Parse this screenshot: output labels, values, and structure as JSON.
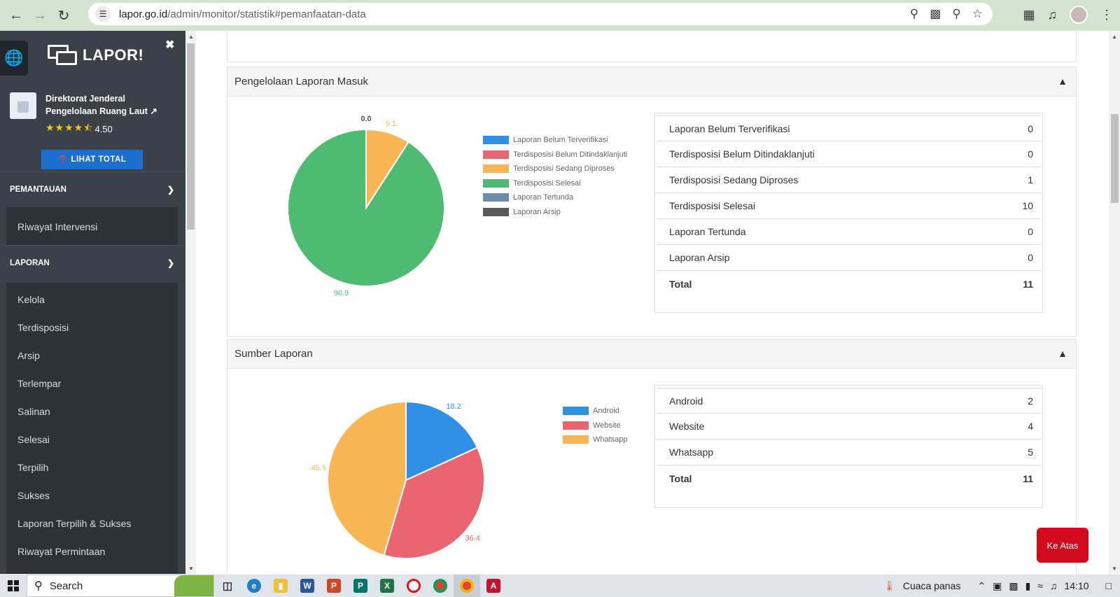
{
  "browser": {
    "url_host": "lapor.go.id",
    "url_path": "/admin/monitor/statistik#pemanfaatan-data"
  },
  "sidebar": {
    "logo_text": "LAPOR!",
    "org_name": "Direktorat Jenderal Pengelolaan Ruang Laut",
    "rating_value": "4.50",
    "lihat_total_label": "LIHAT TOTAL",
    "sections": [
      {
        "title": "PEMANTAUAN",
        "items": [
          "Riwayat Intervensi"
        ]
      },
      {
        "title": "LAPORAN",
        "items": [
          "Kelola",
          "Terdisposisi",
          "Arsip",
          "Terlempar",
          "Salinan",
          "Selesai",
          "Terpilih",
          "Sukses",
          "Laporan Terpilih & Sukses",
          "Riwayat Permintaan"
        ]
      }
    ]
  },
  "panels": [
    {
      "title": "Pengelolaan Laporan Masuk",
      "legend": [
        "Laporan Belum Terverifikasi",
        "Terdisposisi Belum Ditindaklanjuti",
        "Terdisposisi Sedang Diproses",
        "Terdisposisi Selesai",
        "Laporan Tertunda",
        "Laporan Arsip"
      ],
      "rows": [
        {
          "label": "Laporan Belum Terverifikasi",
          "value": "0"
        },
        {
          "label": "Terdisposisi Belum Ditindaklanjuti",
          "value": "0"
        },
        {
          "label": "Terdisposisi Sedang Diproses",
          "value": "1"
        },
        {
          "label": "Terdisposisi Selesai",
          "value": "10"
        },
        {
          "label": "Laporan Tertunda",
          "value": "0"
        },
        {
          "label": "Laporan Arsip",
          "value": "0"
        }
      ],
      "total_label": "Total",
      "total_value": "11"
    },
    {
      "title": "Sumber Laporan",
      "legend": [
        "Android",
        "Website",
        "Whatsapp"
      ],
      "rows": [
        {
          "label": "Android",
          "value": "2"
        },
        {
          "label": "Website",
          "value": "4"
        },
        {
          "label": "Whatsapp",
          "value": "5"
        }
      ],
      "total_label": "Total",
      "total_value": "11"
    }
  ],
  "chart_data": [
    {
      "type": "pie",
      "categories": [
        "Laporan Belum Terverifikasi",
        "Terdisposisi Belum Ditindaklanjuti",
        "Terdisposisi Sedang Diproses",
        "Terdisposisi Selesai",
        "Laporan Tertunda",
        "Laporan Arsip"
      ],
      "values": [
        0.0,
        0.0,
        9.1,
        90.9,
        0.0,
        0.0
      ],
      "data_labels": [
        "",
        "",
        "9.1",
        "90.9",
        "",
        ""
      ],
      "zero_label": "0.0",
      "colors": [
        "#2f91e6",
        "#e9656f",
        "#f8b554",
        "#4fba72",
        "#6a8dab",
        "#5a5a5a"
      ],
      "legend_position": "right"
    },
    {
      "type": "pie",
      "categories": [
        "Android",
        "Website",
        "Whatsapp"
      ],
      "values": [
        18.2,
        36.4,
        45.5
      ],
      "data_labels": [
        "18.2",
        "36.4",
        "45.5"
      ],
      "colors": [
        "#2f91e6",
        "#e9656f",
        "#f8b554"
      ],
      "legend_position": "right"
    }
  ],
  "scroll_top_label": "Ke Atas",
  "taskbar": {
    "search_label": "Search",
    "weather": "Cuaca panas",
    "time": "14:10"
  }
}
